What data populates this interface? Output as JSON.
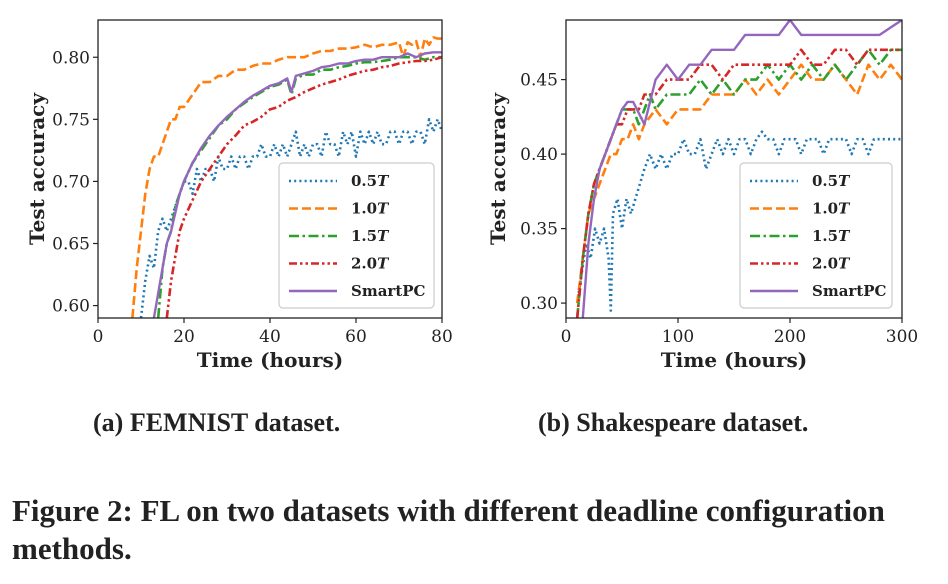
{
  "chart_data": [
    {
      "type": "line",
      "xlabel": "Time (hours)",
      "ylabel": "Test accuracy",
      "xlim": [
        0,
        80
      ],
      "ylim": [
        0.59,
        0.83
      ],
      "xticks": [
        0,
        20,
        40,
        60,
        80
      ],
      "yticks": [
        0.6,
        0.65,
        0.7,
        0.75,
        0.8
      ],
      "ytick_labels": [
        "0.60",
        "0.65",
        "0.70",
        "0.75",
        "0.80"
      ],
      "legend_position": "bottom-right",
      "series": [
        {
          "name": "0.5",
          "suffix": "T",
          "color": "#1f77b4",
          "style": "dotted",
          "x": [
            10,
            11,
            12,
            13,
            14,
            15,
            16,
            17,
            18,
            19,
            20,
            21,
            22,
            23,
            24,
            25,
            26,
            27,
            28,
            29,
            30,
            31,
            32,
            33,
            34,
            35,
            36,
            37,
            38,
            39,
            40,
            41,
            42,
            43,
            44,
            45,
            46,
            47,
            48,
            49,
            50,
            51,
            52,
            53,
            54,
            55,
            56,
            57,
            58,
            59,
            60,
            61,
            62,
            63,
            64,
            65,
            66,
            67,
            68,
            69,
            70,
            71,
            72,
            73,
            74,
            75,
            76,
            77,
            78,
            79,
            80
          ],
          "y": [
            0.59,
            0.62,
            0.64,
            0.63,
            0.66,
            0.67,
            0.66,
            0.67,
            0.68,
            0.69,
            0.7,
            0.7,
            0.69,
            0.71,
            0.7,
            0.71,
            0.71,
            0.7,
            0.72,
            0.71,
            0.71,
            0.72,
            0.71,
            0.72,
            0.72,
            0.71,
            0.72,
            0.72,
            0.73,
            0.72,
            0.72,
            0.73,
            0.72,
            0.73,
            0.72,
            0.73,
            0.74,
            0.72,
            0.73,
            0.72,
            0.73,
            0.73,
            0.72,
            0.74,
            0.73,
            0.73,
            0.72,
            0.74,
            0.73,
            0.74,
            0.72,
            0.74,
            0.73,
            0.74,
            0.73,
            0.74,
            0.73,
            0.73,
            0.74,
            0.74,
            0.73,
            0.74,
            0.74,
            0.73,
            0.74,
            0.74,
            0.73,
            0.75,
            0.74,
            0.75,
            0.74
          ]
        },
        {
          "name": "1.0",
          "suffix": "T",
          "color": "#ff7f0e",
          "style": "dashed",
          "x": [
            8,
            9,
            10,
            11,
            12,
            13,
            14,
            15,
            16,
            17,
            18,
            19,
            20,
            22,
            24,
            26,
            28,
            30,
            32,
            34,
            36,
            38,
            40,
            42,
            44,
            46,
            48,
            50,
            52,
            54,
            56,
            58,
            60,
            62,
            64,
            66,
            68,
            70,
            71,
            72,
            73,
            74,
            75,
            76,
            77,
            78,
            79,
            80
          ],
          "y": [
            0.59,
            0.63,
            0.66,
            0.69,
            0.71,
            0.72,
            0.72,
            0.73,
            0.74,
            0.75,
            0.75,
            0.76,
            0.76,
            0.77,
            0.78,
            0.78,
            0.785,
            0.785,
            0.79,
            0.79,
            0.793,
            0.795,
            0.795,
            0.798,
            0.8,
            0.8,
            0.8,
            0.803,
            0.805,
            0.805,
            0.807,
            0.807,
            0.808,
            0.81,
            0.808,
            0.81,
            0.81,
            0.812,
            0.8,
            0.812,
            0.81,
            0.813,
            0.8,
            0.815,
            0.81,
            0.816,
            0.815,
            0.815
          ]
        },
        {
          "name": "1.5",
          "suffix": "T",
          "color": "#2ca02c",
          "style": "dashdot",
          "x": [
            14,
            15,
            16,
            17,
            18,
            19,
            20,
            22,
            24,
            26,
            28,
            30,
            32,
            34,
            36,
            38,
            40,
            42,
            44,
            45,
            46,
            48,
            50,
            52,
            54,
            56,
            58,
            60,
            62,
            64,
            66,
            68,
            70,
            72,
            74,
            76,
            78,
            80
          ],
          "y": [
            0.59,
            0.63,
            0.65,
            0.66,
            0.68,
            0.69,
            0.7,
            0.715,
            0.725,
            0.735,
            0.745,
            0.75,
            0.758,
            0.763,
            0.768,
            0.772,
            0.776,
            0.778,
            0.782,
            0.77,
            0.783,
            0.786,
            0.786,
            0.79,
            0.79,
            0.792,
            0.793,
            0.795,
            0.796,
            0.796,
            0.797,
            0.798,
            0.8,
            0.8,
            0.8,
            0.798,
            0.8,
            0.8
          ]
        },
        {
          "name": "2.0",
          "suffix": "T",
          "color": "#d62728",
          "style": "dashdotdot",
          "x": [
            16,
            17,
            18,
            19,
            20,
            22,
            24,
            26,
            28,
            30,
            32,
            34,
            36,
            38,
            40,
            42,
            44,
            46,
            48,
            50,
            52,
            54,
            56,
            58,
            60,
            62,
            64,
            66,
            68,
            70,
            72,
            74,
            76,
            78,
            80
          ],
          "y": [
            0.59,
            0.62,
            0.64,
            0.66,
            0.67,
            0.685,
            0.7,
            0.71,
            0.72,
            0.73,
            0.737,
            0.745,
            0.748,
            0.752,
            0.758,
            0.76,
            0.765,
            0.768,
            0.772,
            0.775,
            0.778,
            0.78,
            0.782,
            0.785,
            0.787,
            0.789,
            0.79,
            0.792,
            0.793,
            0.795,
            0.796,
            0.797,
            0.797,
            0.798,
            0.8
          ]
        },
        {
          "name": "SmartPC",
          "suffix": "",
          "color": "#9467bd",
          "style": "solid",
          "x": [
            13,
            14,
            15,
            16,
            17,
            18,
            19,
            20,
            22,
            24,
            26,
            28,
            30,
            32,
            34,
            36,
            38,
            40,
            42,
            44,
            45,
            46,
            48,
            50,
            52,
            54,
            56,
            58,
            60,
            62,
            64,
            66,
            68,
            70,
            72,
            74,
            76,
            78,
            80
          ],
          "y": [
            0.59,
            0.61,
            0.63,
            0.65,
            0.66,
            0.675,
            0.69,
            0.7,
            0.715,
            0.727,
            0.737,
            0.745,
            0.752,
            0.758,
            0.764,
            0.769,
            0.773,
            0.777,
            0.779,
            0.783,
            0.772,
            0.785,
            0.787,
            0.789,
            0.792,
            0.793,
            0.795,
            0.795,
            0.797,
            0.798,
            0.798,
            0.8,
            0.8,
            0.8,
            0.803,
            0.8,
            0.803,
            0.804,
            0.804
          ]
        }
      ]
    },
    {
      "type": "line",
      "xlabel": "Time (hours)",
      "ylabel": "Test accuracy",
      "xlim": [
        0,
        300
      ],
      "ylim": [
        0.29,
        0.49
      ],
      "xticks": [
        0,
        100,
        200,
        300
      ],
      "yticks": [
        0.3,
        0.35,
        0.4,
        0.45
      ],
      "ytick_labels": [
        "0.30",
        "0.35",
        "0.40",
        "0.45"
      ],
      "legend_position": "bottom-right",
      "series": [
        {
          "name": "0.5",
          "suffix": "T",
          "color": "#1f77b4",
          "style": "dotted",
          "x": [
            10,
            14,
            18,
            22,
            26,
            30,
            34,
            38,
            40,
            42,
            46,
            50,
            54,
            58,
            62,
            66,
            70,
            75,
            80,
            85,
            90,
            95,
            100,
            105,
            110,
            115,
            120,
            125,
            130,
            135,
            140,
            145,
            150,
            155,
            160,
            165,
            170,
            175,
            180,
            185,
            190,
            195,
            200,
            205,
            210,
            215,
            220,
            225,
            230,
            235,
            240,
            245,
            250,
            255,
            260,
            265,
            270,
            275,
            280,
            285,
            290,
            295,
            300
          ],
          "y": [
            0.3,
            0.32,
            0.34,
            0.33,
            0.35,
            0.34,
            0.35,
            0.33,
            0.295,
            0.36,
            0.37,
            0.35,
            0.37,
            0.36,
            0.37,
            0.38,
            0.39,
            0.4,
            0.39,
            0.4,
            0.39,
            0.4,
            0.4,
            0.41,
            0.4,
            0.4,
            0.41,
            0.39,
            0.4,
            0.41,
            0.4,
            0.41,
            0.4,
            0.41,
            0.41,
            0.4,
            0.41,
            0.415,
            0.41,
            0.41,
            0.4,
            0.41,
            0.41,
            0.41,
            0.4,
            0.41,
            0.41,
            0.41,
            0.4,
            0.41,
            0.41,
            0.41,
            0.41,
            0.4,
            0.41,
            0.41,
            0.4,
            0.41,
            0.41,
            0.41,
            0.41,
            0.41,
            0.41
          ]
        },
        {
          "name": "1.0",
          "suffix": "T",
          "color": "#ff7f0e",
          "style": "dashed",
          "x": [
            10,
            15,
            20,
            25,
            30,
            35,
            40,
            45,
            50,
            55,
            60,
            65,
            70,
            80,
            90,
            100,
            110,
            120,
            130,
            140,
            150,
            160,
            170,
            180,
            190,
            200,
            210,
            220,
            230,
            240,
            250,
            260,
            270,
            280,
            290,
            300
          ],
          "y": [
            0.3,
            0.33,
            0.36,
            0.37,
            0.38,
            0.39,
            0.4,
            0.4,
            0.41,
            0.41,
            0.42,
            0.41,
            0.42,
            0.43,
            0.42,
            0.43,
            0.43,
            0.43,
            0.44,
            0.44,
            0.44,
            0.45,
            0.44,
            0.45,
            0.44,
            0.45,
            0.46,
            0.45,
            0.45,
            0.46,
            0.45,
            0.44,
            0.46,
            0.45,
            0.46,
            0.45
          ]
        },
        {
          "name": "1.5",
          "suffix": "T",
          "color": "#2ca02c",
          "style": "dashdot",
          "x": [
            10,
            15,
            20,
            25,
            30,
            35,
            40,
            45,
            50,
            55,
            60,
            65,
            70,
            75,
            80,
            90,
            100,
            110,
            120,
            130,
            140,
            150,
            160,
            170,
            180,
            190,
            200,
            210,
            220,
            230,
            240,
            250,
            260,
            270,
            280,
            290,
            300
          ],
          "y": [
            0.29,
            0.33,
            0.36,
            0.38,
            0.39,
            0.4,
            0.41,
            0.42,
            0.43,
            0.43,
            0.43,
            0.42,
            0.43,
            0.44,
            0.43,
            0.44,
            0.44,
            0.44,
            0.45,
            0.44,
            0.45,
            0.44,
            0.45,
            0.45,
            0.46,
            0.45,
            0.46,
            0.45,
            0.46,
            0.45,
            0.46,
            0.45,
            0.46,
            0.47,
            0.46,
            0.47,
            0.47
          ]
        },
        {
          "name": "2.0",
          "suffix": "T",
          "color": "#d62728",
          "style": "dashdotdot",
          "x": [
            10,
            15,
            20,
            25,
            30,
            35,
            40,
            45,
            50,
            55,
            60,
            65,
            70,
            80,
            90,
            100,
            110,
            120,
            130,
            140,
            150,
            160,
            170,
            180,
            190,
            200,
            210,
            220,
            230,
            240,
            250,
            260,
            270,
            280,
            290,
            300
          ],
          "y": [
            0.29,
            0.33,
            0.36,
            0.38,
            0.39,
            0.4,
            0.41,
            0.42,
            0.42,
            0.43,
            0.43,
            0.43,
            0.44,
            0.44,
            0.45,
            0.45,
            0.45,
            0.46,
            0.46,
            0.45,
            0.46,
            0.46,
            0.46,
            0.46,
            0.46,
            0.46,
            0.47,
            0.46,
            0.46,
            0.47,
            0.47,
            0.46,
            0.47,
            0.47,
            0.47,
            0.47
          ]
        },
        {
          "name": "SmartPC",
          "suffix": "",
          "color": "#9467bd",
          "style": "solid",
          "x": [
            15,
            20,
            25,
            30,
            35,
            40,
            45,
            50,
            55,
            60,
            70,
            80,
            90,
            100,
            110,
            120,
            130,
            140,
            150,
            160,
            170,
            180,
            190,
            200,
            210,
            220,
            230,
            240,
            250,
            260,
            270,
            280,
            290,
            300
          ],
          "y": [
            0.29,
            0.34,
            0.37,
            0.39,
            0.4,
            0.41,
            0.42,
            0.43,
            0.435,
            0.435,
            0.42,
            0.45,
            0.46,
            0.45,
            0.46,
            0.46,
            0.47,
            0.47,
            0.47,
            0.48,
            0.48,
            0.48,
            0.48,
            0.49,
            0.48,
            0.48,
            0.48,
            0.48,
            0.48,
            0.48,
            0.48,
            0.48,
            0.485,
            0.49
          ]
        }
      ]
    }
  ],
  "captions": {
    "a": "(a) FEMNIST dataset.",
    "b": "(b) Shakespeare dataset.",
    "figure": "Figure 2: FL on two datasets with different deadline configuration methods."
  }
}
